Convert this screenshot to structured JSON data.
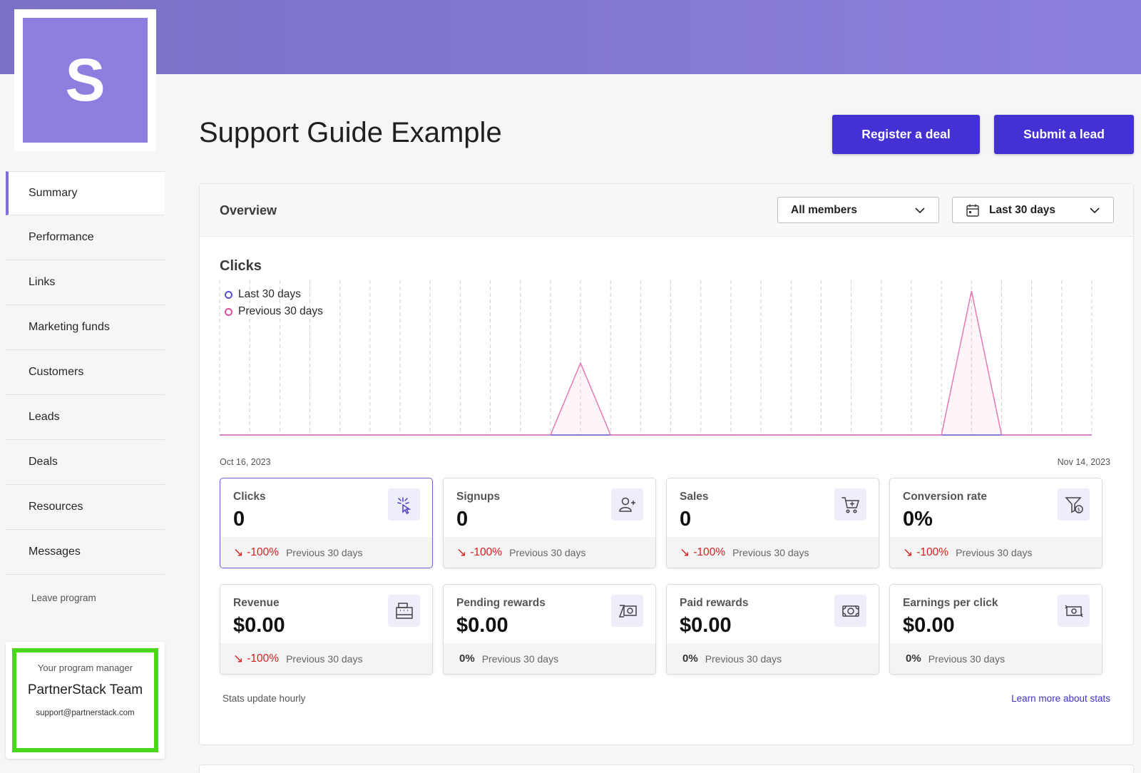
{
  "brand": {
    "logo_letter": "S",
    "color": "#8c7fe0"
  },
  "header": {
    "title": "Support Guide Example",
    "register_deal": "Register a deal",
    "submit_lead": "Submit a lead"
  },
  "sidebar": {
    "items": [
      {
        "label": "Summary",
        "active": true
      },
      {
        "label": "Performance"
      },
      {
        "label": "Links"
      },
      {
        "label": "Marketing funds"
      },
      {
        "label": "Customers"
      },
      {
        "label": "Leads"
      },
      {
        "label": "Deals"
      },
      {
        "label": "Resources"
      },
      {
        "label": "Messages"
      }
    ],
    "leave": "Leave program"
  },
  "manager": {
    "label": "Your program manager",
    "name": "PartnerStack Team",
    "email": "support@partnerstack.com"
  },
  "overview": {
    "title": "Overview",
    "members_select": "All members",
    "range_select": "Last 30 days"
  },
  "chart_data": {
    "type": "area",
    "title": "Clicks",
    "series": [
      {
        "name": "Last 30 days",
        "color": "#5b4fd6",
        "values": [
          0,
          0,
          0,
          0,
          0,
          0,
          0,
          0,
          0,
          0,
          0,
          0,
          0,
          0,
          0,
          0,
          0,
          0,
          0,
          0,
          0,
          0,
          0,
          0,
          0,
          0,
          0,
          0,
          0,
          0
        ]
      },
      {
        "name": "Previous 30 days",
        "color": "#e67ab5",
        "values": [
          0,
          0,
          0,
          0,
          0,
          0,
          0,
          0,
          0,
          0,
          0,
          0,
          1,
          0,
          0,
          0,
          0,
          0,
          0,
          0,
          0,
          0,
          0,
          0,
          0,
          2,
          0,
          0,
          0,
          0
        ]
      }
    ],
    "ylim": [
      0,
      2.15
    ],
    "x_start_label": "Oct 16, 2023",
    "x_end_label": "Nov 14, 2023",
    "grid": "vertical-dashed"
  },
  "stats": [
    {
      "label": "Clicks",
      "value": "0",
      "icon": "click-icon",
      "delta": "-100%",
      "trend": "down",
      "prev": "Previous 30 days"
    },
    {
      "label": "Signups",
      "value": "0",
      "icon": "add-user-icon",
      "delta": "-100%",
      "trend": "down",
      "prev": "Previous 30 days"
    },
    {
      "label": "Sales",
      "value": "0",
      "icon": "cart-icon",
      "delta": "-100%",
      "trend": "down",
      "prev": "Previous 30 days"
    },
    {
      "label": "Conversion rate",
      "value": "0%",
      "icon": "funnel-dollar-icon",
      "delta": "-100%",
      "trend": "down",
      "prev": "Previous 30 days"
    },
    {
      "label": "Revenue",
      "value": "$0.00",
      "icon": "cash-register-icon",
      "delta": "-100%",
      "trend": "down",
      "prev": "Previous 30 days"
    },
    {
      "label": "Pending rewards",
      "value": "$0.00",
      "icon": "pending-cash-icon",
      "delta": "0%",
      "trend": "flat",
      "prev": "Previous 30 days"
    },
    {
      "label": "Paid rewards",
      "value": "$0.00",
      "icon": "cash-icon",
      "delta": "0%",
      "trend": "flat",
      "prev": "Previous 30 days"
    },
    {
      "label": "Earnings per click",
      "value": "$0.00",
      "icon": "cash-transfer-icon",
      "delta": "0%",
      "trend": "flat",
      "prev": "Previous 30 days"
    }
  ],
  "footer": {
    "note": "Stats update hourly",
    "learn_more": "Learn more about stats"
  }
}
